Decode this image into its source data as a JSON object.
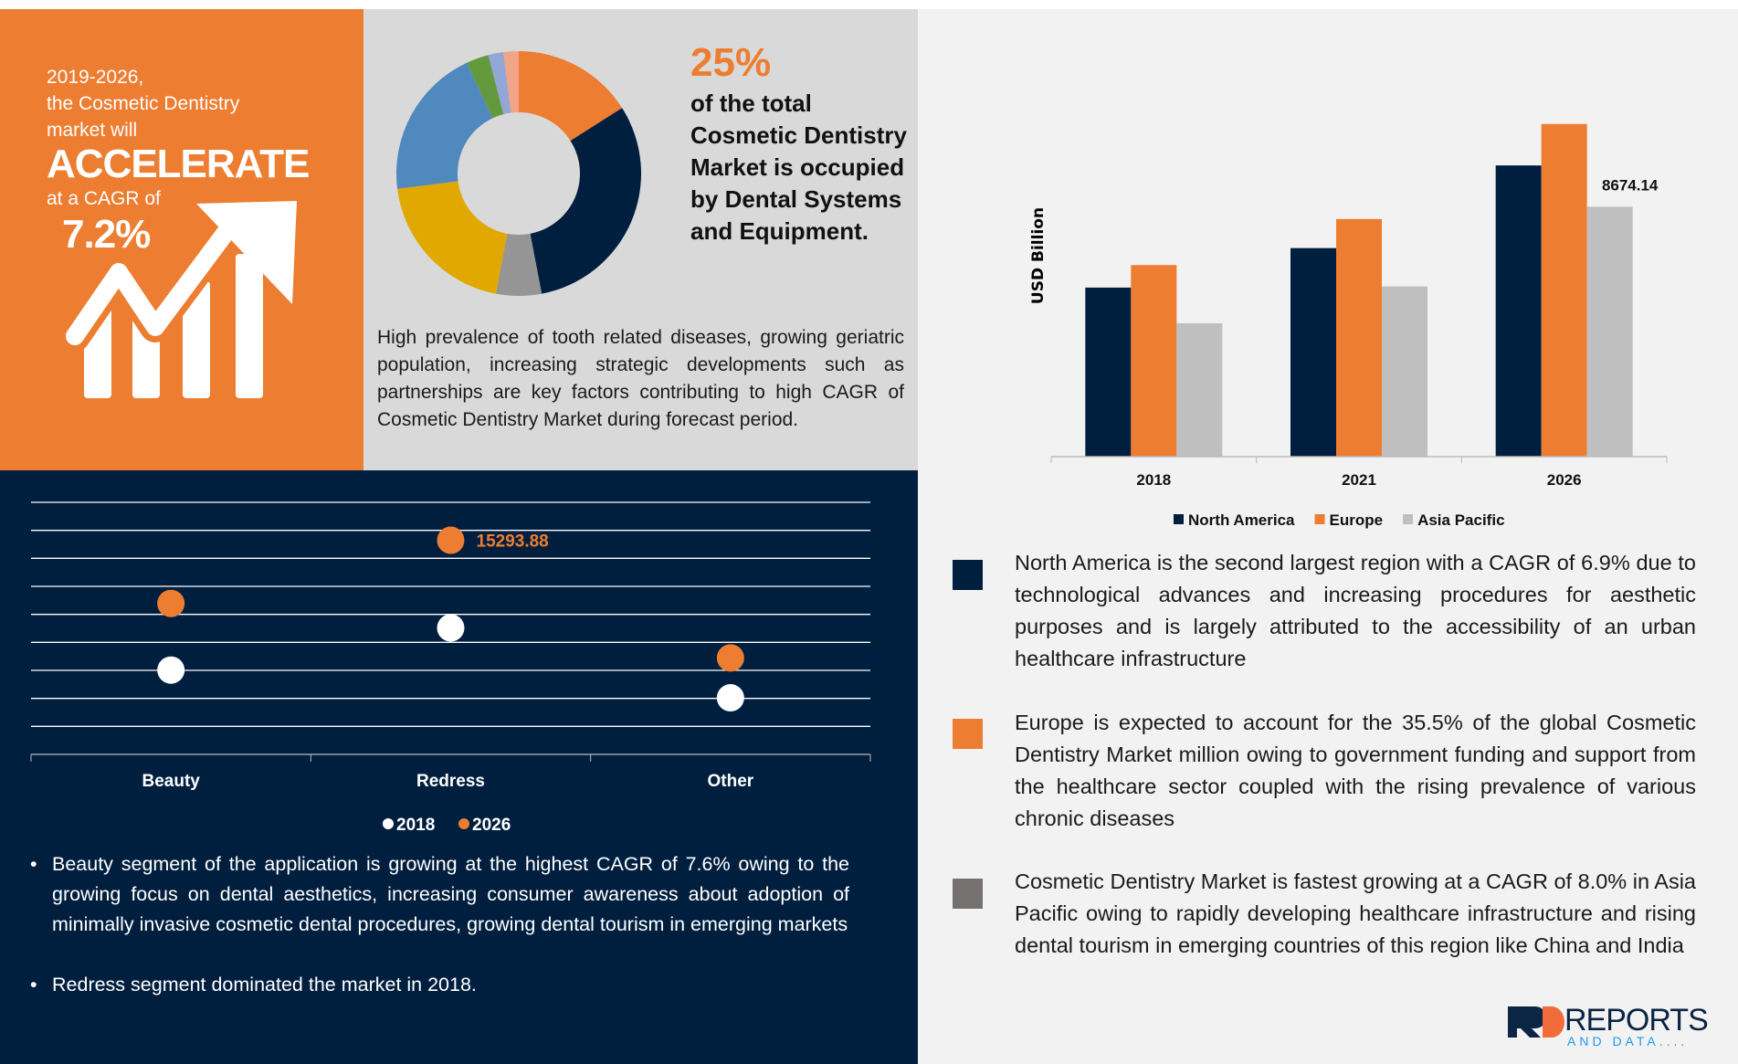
{
  "headline": {
    "line1": "2019-2026,",
    "line2": "the Cosmetic Dentistry",
    "line3": "market will",
    "accelerate": "ACCELERATE",
    "cagr_label": "at a CAGR of",
    "cagr_value": "7.2%",
    "icon": "growth-arrow-chart-icon"
  },
  "donut": {
    "percent": "25%",
    "caption_lines": [
      "of the total",
      "Cosmetic Dentistry",
      "Market is occupied",
      "by Dental Systems",
      "and Equipment."
    ],
    "description": "High prevalence of tooth related diseases, growing geriatric population, increasing strategic developments such as partnerships are key factors contributing to high CAGR of Cosmetic Dentistry Market during forecast period."
  },
  "bullets": [
    "Beauty segment of the application is growing at the highest CAGR of 7.6% owing to the growing focus on dental aesthetics, increasing consumer awareness about adoption of minimally invasive cosmetic dental procedures, growing dental tourism in emerging markets",
    "Redress segment dominated the market in 2018."
  ],
  "regions": [
    {
      "color": "#001F3F",
      "text": "North America is the second largest region with a CAGR of 6.9% due to technological advances and increasing procedures for aesthetic purposes and is largely attributed to the accessibility of an urban healthcare infrastructure"
    },
    {
      "color": "#ED7D31",
      "text": "Europe is expected to account for the 35.5% of the global Cosmetic Dentistry Market million owing to government funding and support from the healthcare sector coupled with the rising prevalence of various chronic diseases"
    },
    {
      "color": "#767171",
      "text": "Cosmetic Dentistry Market is fastest growing at a CAGR of 8.0% in Asia Pacific owing to rapidly developing healthcare infrastructure and rising dental tourism in emerging countries of this region like China and India"
    }
  ],
  "logo": {
    "main": "REPORTS",
    "sub": "AND DATA...."
  },
  "chart_data": [
    {
      "type": "pie",
      "style": "donut",
      "values": [
        16,
        31,
        6,
        20,
        20,
        3,
        2,
        2
      ],
      "colors": [
        "#ED7D31",
        "#001F3F",
        "#959595",
        "#E0A800",
        "#5089BE",
        "#649A3E",
        "#94A6D6",
        "#F0A587"
      ]
    },
    {
      "type": "scatter",
      "categories": [
        "Beauty",
        "Redress",
        "Other"
      ],
      "series": [
        {
          "name": "2018",
          "color": "#FFFFFF",
          "values": [
            6020,
            9030,
            4040
          ]
        },
        {
          "name": "2026",
          "color": "#ED7D31",
          "values": [
            10780,
            15293.88,
            6890
          ]
        }
      ],
      "data_labels": [
        {
          "series": "2026",
          "category": "Redress",
          "text": "15293.88"
        }
      ],
      "ylim": [
        0,
        18000
      ],
      "grid_step": 2000,
      "grid": true,
      "legend": "bottom"
    },
    {
      "type": "bar",
      "categories": [
        "2018",
        "2021",
        "2026"
      ],
      "series": [
        {
          "name": "North America",
          "color": "#001F3F",
          "values": [
            5870,
            7240,
            10110
          ]
        },
        {
          "name": "Europe",
          "color": "#ED7D31",
          "values": [
            6650,
            8250,
            11550
          ]
        },
        {
          "name": "Asia Pacific",
          "color": "#BFBFBF",
          "values": [
            4630,
            5910,
            8674.14
          ]
        }
      ],
      "data_labels": [
        {
          "series": "Asia Pacific",
          "category": "2026",
          "text": "8674.14"
        }
      ],
      "ylabel": "USD Billion",
      "ylim": [
        0,
        13000
      ],
      "grid": false,
      "legend": "bottom"
    }
  ]
}
